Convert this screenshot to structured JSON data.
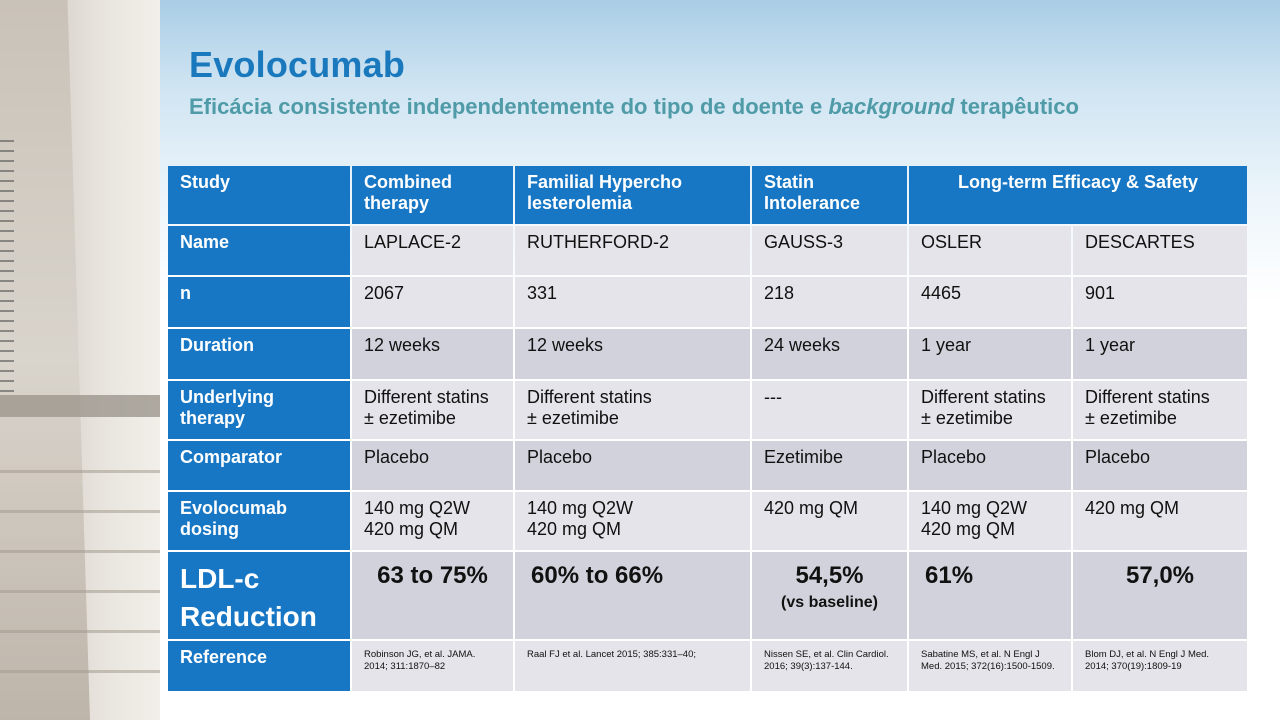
{
  "slide": {
    "title": "Evolocumab",
    "subtitle_part1": "Eficácia consistente independentemente do tipo de doente e ",
    "subtitle_italic": "background",
    "subtitle_part2": " terapêutico"
  },
  "table": {
    "header": {
      "study": "Study",
      "combined": "Combined therapy",
      "familial": "Familial Hypercho lesterolemia",
      "statin": "Statin Intolerance",
      "longterm": "Long-term Efficacy & Safety"
    },
    "row_labels": {
      "name": "Name",
      "n": "n",
      "duration": "Duration",
      "underlying": "Underlying therapy",
      "comparator": "Comparator",
      "dosing": "Evolocumab dosing",
      "ldl": "LDL-c Reduction",
      "reference": "Reference"
    },
    "studies": [
      {
        "name": "LAPLACE-2",
        "n": "2067",
        "duration": "12 weeks",
        "underlying_1": "Different statins",
        "underlying_2": "± ezetimibe",
        "comparator": "Placebo",
        "dosing_1": "140 mg Q2W",
        "dosing_2": "420 mg QM",
        "ldl": "63 to 75%",
        "ldl_note": "",
        "reference": "Robinson JG, et al. JAMA. 2014; 311:1870–82"
      },
      {
        "name": "RUTHERFORD-2",
        "n": "331",
        "duration": "12 weeks",
        "underlying_1": "Different statins",
        "underlying_2": "± ezetimibe",
        "comparator": "Placebo",
        "dosing_1": "140 mg Q2W",
        "dosing_2": "420 mg QM",
        "ldl": "60% to 66%",
        "ldl_note": "",
        "reference": "Raal FJ et al. Lancet 2015; 385:331–40;"
      },
      {
        "name": "GAUSS-3",
        "n": "218",
        "duration": "24 weeks",
        "underlying_1": "---",
        "underlying_2": "",
        "comparator": "Ezetimibe",
        "dosing_1": "420 mg QM",
        "dosing_2": "",
        "ldl": "54,5%",
        "ldl_note": "(vs baseline)",
        "reference": "Nissen SE, et al. Clin Cardiol. 2016; 39(3):137-144."
      },
      {
        "name": "OSLER",
        "n": "4465",
        "duration": "1 year",
        "underlying_1": "Different statins",
        "underlying_2": "± ezetimibe",
        "comparator": "Placebo",
        "dosing_1": "140 mg Q2W",
        "dosing_2": "420 mg QM",
        "ldl": "61%",
        "ldl_note": "",
        "reference": "Sabatine MS, et al. N Engl J Med. 2015; 372(16):1500-1509."
      },
      {
        "name": "DESCARTES",
        "n": "901",
        "duration": "1 year",
        "underlying_1": "Different statins",
        "underlying_2": "± ezetimibe",
        "comparator": "Placebo",
        "dosing_1": "420 mg QM",
        "dosing_2": "",
        "ldl": "57,0%",
        "ldl_note": "",
        "reference": "Blom DJ, et al. N Engl J Med. 2014; 370(19):1809-19"
      }
    ]
  },
  "colors": {
    "header_blue": "#1777c4",
    "title_blue": "#1a79bd",
    "subtitle_teal": "#4f9ba7",
    "cell_light": "#e4e4ea",
    "cell_dark": "#d2d2dc"
  }
}
